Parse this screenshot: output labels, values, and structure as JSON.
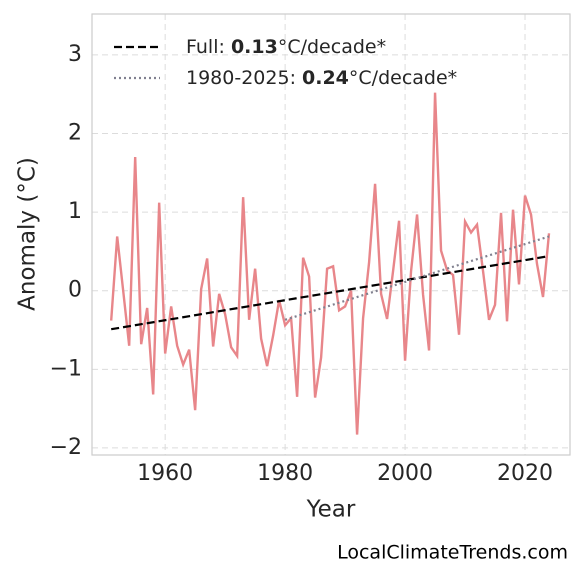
{
  "chart_data": {
    "type": "line",
    "xlabel": "Year",
    "ylabel": "Anomaly (°C)",
    "watermark": "LocalClimateTrends.com",
    "x": [
      1951,
      1952,
      1953,
      1954,
      1955,
      1956,
      1957,
      1958,
      1959,
      1960,
      1961,
      1962,
      1963,
      1964,
      1965,
      1966,
      1967,
      1968,
      1969,
      1970,
      1971,
      1972,
      1973,
      1974,
      1975,
      1976,
      1977,
      1978,
      1979,
      1980,
      1981,
      1982,
      1983,
      1984,
      1985,
      1986,
      1987,
      1988,
      1989,
      1990,
      1991,
      1992,
      1993,
      1994,
      1995,
      1996,
      1997,
      1998,
      1999,
      2000,
      2001,
      2002,
      2003,
      2004,
      2005,
      2006,
      2007,
      2008,
      2009,
      2010,
      2011,
      2012,
      2013,
      2014,
      2015,
      2016,
      2017,
      2018,
      2019,
      2020,
      2021,
      2022,
      2023,
      2024
    ],
    "series": [
      {
        "color": "#e8868a",
        "linestyle": "solid",
        "values": [
          -0.38,
          0.69,
          0.0,
          -0.7,
          1.7,
          -0.68,
          -0.22,
          -1.32,
          1.12,
          -0.8,
          -0.2,
          -0.7,
          -0.94,
          -0.75,
          -1.52,
          0.02,
          0.41,
          -0.71,
          -0.04,
          -0.3,
          -0.72,
          -0.83,
          1.19,
          -0.37,
          0.28,
          -0.61,
          -0.96,
          -0.57,
          -0.12,
          -0.44,
          -0.35,
          -1.35,
          0.42,
          0.18,
          -1.36,
          -0.85,
          0.28,
          0.31,
          -0.25,
          -0.2,
          0.0,
          -1.83,
          -0.35,
          0.36,
          1.36,
          -0.04,
          -0.36,
          0.25,
          0.89,
          -0.89,
          0.25,
          0.97,
          -0.05,
          -0.76,
          2.52,
          0.51,
          0.26,
          0.2,
          -0.56,
          0.88,
          0.74,
          0.84,
          0.25,
          -0.37,
          -0.18,
          0.99,
          -0.39,
          1.03,
          0.08,
          1.21,
          0.97,
          0.34,
          -0.08,
          0.73
        ]
      },
      {
        "name": "Full: 0.13°C/decade*",
        "color": "#000000",
        "linestyle": "dashed",
        "x": [
          1951,
          2024
        ],
        "values": [
          -0.49,
          0.44
        ]
      },
      {
        "name": "1980-2025: 0.24°C/decade*",
        "color": "#80808f",
        "linestyle": "dotted",
        "x": [
          1980,
          2024
        ],
        "values": [
          -0.37,
          0.69
        ]
      }
    ],
    "xlim": [
      1947.8,
      2027.5
    ],
    "xticks": [
      1960,
      1980,
      2000,
      2020
    ],
    "ylim": [
      -2.09,
      3.52
    ],
    "yticks": [
      {
        "value": -2,
        "label": "−2"
      },
      {
        "value": -1,
        "label": "−1"
      },
      0,
      1,
      2,
      3
    ],
    "grid": true,
    "legend": "upper left"
  }
}
